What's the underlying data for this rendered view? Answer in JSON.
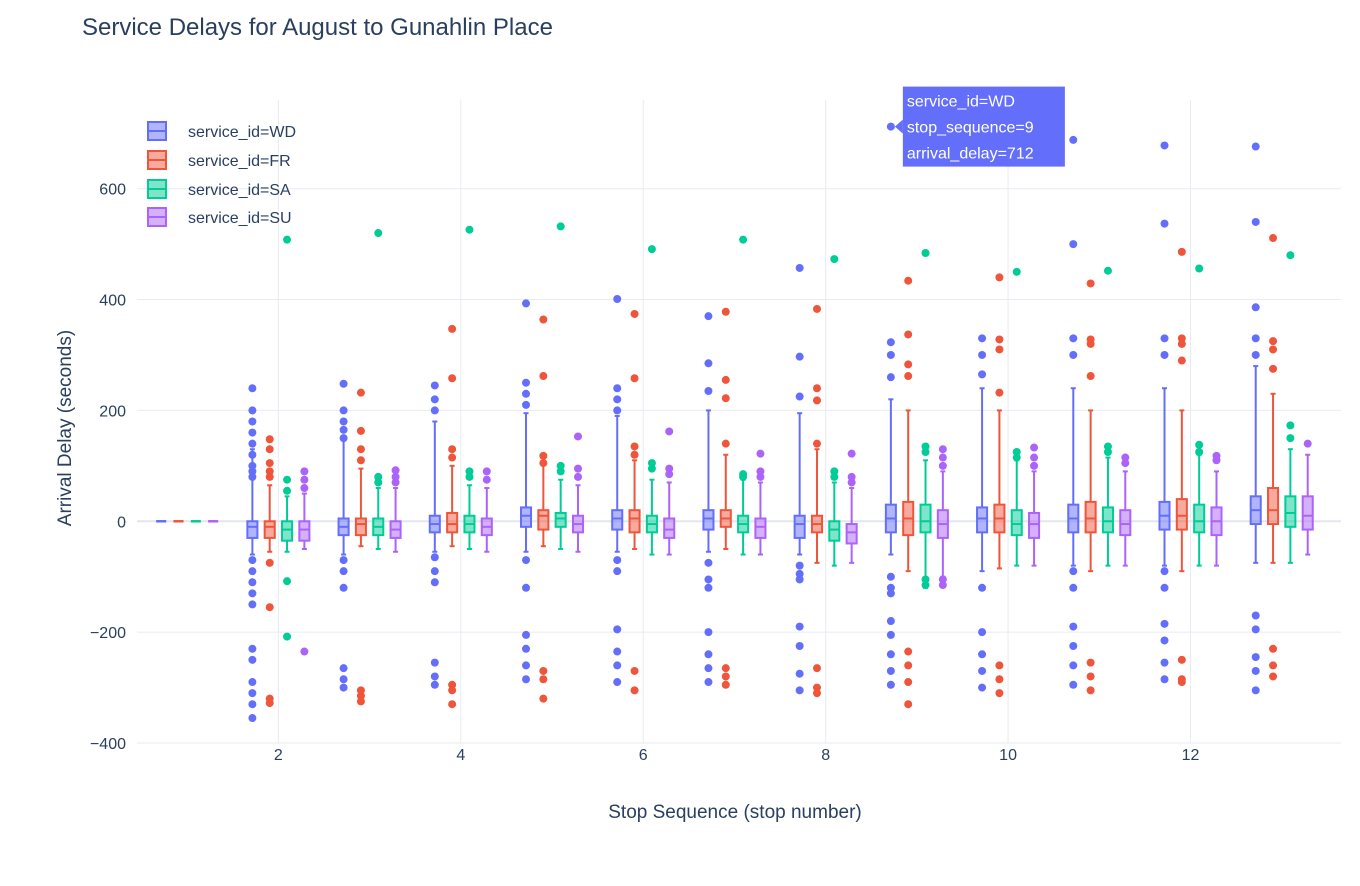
{
  "colors": {
    "WD": "#636efa",
    "FR": "#ef553b",
    "SA": "#00cc96",
    "SU": "#ab63fa",
    "grid": "#e8ebf1",
    "text": "#2a3f5f"
  },
  "chart_data": {
    "type": "box",
    "title": "Service Delays for August to Gunahlin Place",
    "xlabel": "Stop Sequence (stop number)",
    "ylabel": "Arrival Delay (seconds)",
    "xlim": [
      0.45,
      13.65
    ],
    "ylim": [
      -400,
      760
    ],
    "x_ticks": [
      2,
      4,
      6,
      8,
      10,
      12
    ],
    "x_tick_labels": [
      "2",
      "4",
      "6",
      "8",
      "10",
      "12"
    ],
    "y_ticks": [
      -400,
      -200,
      0,
      200,
      400,
      600
    ],
    "y_tick_labels": [
      "−400",
      "−200",
      "0",
      "200",
      "400",
      "600"
    ],
    "legend": {
      "position": "top-left",
      "entries": [
        "service_id=WD",
        "service_id=FR",
        "service_id=SA",
        "service_id=SU"
      ]
    },
    "series": [
      {
        "name": "service_id=WD",
        "key": "WD",
        "boxes": [
          {
            "x": 1,
            "q1": 0,
            "median": 0,
            "q3": 0,
            "lo": 0,
            "hi": 0,
            "outliers": []
          },
          {
            "x": 2,
            "q1": -30,
            "median": -10,
            "q3": 0,
            "lo": -60,
            "hi": 130,
            "outliers": [
              240,
              200,
              180,
              160,
              140,
              120,
              100,
              90,
              80,
              -70,
              -90,
              -110,
              -130,
              -150,
              -230,
              -250,
              -290,
              -310,
              -330,
              -355
            ]
          },
          {
            "x": 3,
            "q1": -25,
            "median": -10,
            "q3": 5,
            "lo": -60,
            "hi": 150,
            "outliers": [
              248,
              200,
              180,
              165,
              150,
              -70,
              -90,
              -120,
              -265,
              -285,
              -300
            ]
          },
          {
            "x": 4,
            "q1": -20,
            "median": -5,
            "q3": 10,
            "lo": -55,
            "hi": 180,
            "outliers": [
              245,
              220,
              200,
              -65,
              -90,
              -110,
              -255,
              -280,
              -295
            ]
          },
          {
            "x": 5,
            "q1": -10,
            "median": 10,
            "q3": 25,
            "lo": -55,
            "hi": 195,
            "outliers": [
              393,
              250,
              230,
              210,
              -70,
              -120,
              -205,
              -230,
              -260,
              -285
            ]
          },
          {
            "x": 6,
            "q1": -15,
            "median": 5,
            "q3": 20,
            "lo": -55,
            "hi": 190,
            "outliers": [
              401,
              240,
              220,
              200,
              -70,
              -90,
              -195,
              -235,
              -260,
              -290
            ]
          },
          {
            "x": 7,
            "q1": -15,
            "median": 5,
            "q3": 20,
            "lo": -55,
            "hi": 200,
            "outliers": [
              370,
              285,
              235,
              -75,
              -105,
              -120,
              -200,
              -240,
              -265,
              -290
            ]
          },
          {
            "x": 8,
            "q1": -30,
            "median": -5,
            "q3": 10,
            "lo": -60,
            "hi": 195,
            "outliers": [
              457,
              297,
              225,
              -80,
              -95,
              -105,
              -190,
              -225,
              -275,
              -305
            ]
          },
          {
            "x": 9,
            "q1": -20,
            "median": 5,
            "q3": 30,
            "lo": -60,
            "hi": 220,
            "outliers": [
              712,
              323,
              300,
              260,
              -100,
              -120,
              -130,
              -180,
              -205,
              -240,
              -270,
              -295
            ]
          },
          {
            "x": 10,
            "q1": -20,
            "median": 5,
            "q3": 25,
            "lo": -90,
            "hi": 240,
            "outliers": [
              330,
              300,
              265,
              -120,
              -200,
              -240,
              -270,
              -300
            ]
          },
          {
            "x": 11,
            "q1": -20,
            "median": 5,
            "q3": 30,
            "lo": -80,
            "hi": 240,
            "outliers": [
              688,
              500,
              330,
              300,
              -90,
              -120,
              -190,
              -225,
              -260,
              -295
            ]
          },
          {
            "x": 12,
            "q1": -15,
            "median": 10,
            "q3": 35,
            "lo": -80,
            "hi": 240,
            "outliers": [
              678,
              537,
              330,
              300,
              -90,
              -120,
              -185,
              -215,
              -255,
              -285
            ]
          },
          {
            "x": 13,
            "q1": -5,
            "median": 20,
            "q3": 45,
            "lo": -75,
            "hi": 280,
            "outliers": [
              676,
              540,
              386,
              330,
              300,
              -170,
              -195,
              -245,
              -270,
              -305
            ]
          }
        ]
      },
      {
        "name": "service_id=FR",
        "key": "FR",
        "boxes": [
          {
            "x": 1,
            "q1": 0,
            "median": 0,
            "q3": 0,
            "lo": 0,
            "hi": 0,
            "outliers": []
          },
          {
            "x": 2,
            "q1": -30,
            "median": -10,
            "q3": 0,
            "lo": -55,
            "hi": 65,
            "outliers": [
              148,
              130,
              105,
              90,
              80,
              -75,
              -155,
              -320,
              -328
            ]
          },
          {
            "x": 3,
            "q1": -25,
            "median": -5,
            "q3": 5,
            "lo": -45,
            "hi": 95,
            "outliers": [
              232,
              163,
              130,
              110,
              -305,
              -315,
              -325
            ]
          },
          {
            "x": 4,
            "q1": -20,
            "median": -5,
            "q3": 15,
            "lo": -45,
            "hi": 100,
            "outliers": [
              347,
              258,
              130,
              115,
              -295,
              -305,
              -330
            ]
          },
          {
            "x": 5,
            "q1": -15,
            "median": 10,
            "q3": 20,
            "lo": -45,
            "hi": 105,
            "outliers": [
              364,
              262,
              118,
              105,
              -270,
              -285,
              -320
            ]
          },
          {
            "x": 6,
            "q1": -20,
            "median": 5,
            "q3": 20,
            "lo": -50,
            "hi": 110,
            "outliers": [
              374,
              258,
              135,
              120,
              -270,
              -305
            ]
          },
          {
            "x": 7,
            "q1": -10,
            "median": 5,
            "q3": 20,
            "lo": -50,
            "hi": 120,
            "outliers": [
              378,
              255,
              222,
              140,
              -265,
              -280,
              -295
            ]
          },
          {
            "x": 8,
            "q1": -20,
            "median": -5,
            "q3": 10,
            "lo": -75,
            "hi": 130,
            "outliers": [
              383,
              240,
              218,
              140,
              -265,
              -300,
              -310
            ]
          },
          {
            "x": 9,
            "q1": -25,
            "median": 5,
            "q3": 35,
            "lo": -90,
            "hi": 200,
            "outliers": [
              434,
              337,
              283,
              262,
              -235,
              -260,
              -290,
              -330
            ]
          },
          {
            "x": 10,
            "q1": -20,
            "median": 5,
            "q3": 30,
            "lo": -85,
            "hi": 200,
            "outliers": [
              440,
              328,
              310,
              232,
              -260,
              -285,
              -310
            ]
          },
          {
            "x": 11,
            "q1": -20,
            "median": 5,
            "q3": 35,
            "lo": -90,
            "hi": 200,
            "outliers": [
              429,
              328,
              320,
              262,
              -255,
              -280,
              -305
            ]
          },
          {
            "x": 12,
            "q1": -15,
            "median": 10,
            "q3": 40,
            "lo": -90,
            "hi": 200,
            "outliers": [
              486,
              330,
              320,
              290,
              -250,
              -285,
              -290
            ]
          },
          {
            "x": 13,
            "q1": -5,
            "median": 20,
            "q3": 60,
            "lo": -75,
            "hi": 230,
            "outliers": [
              511,
              325,
              310,
              275,
              -230,
              -260,
              -280
            ]
          }
        ]
      },
      {
        "name": "service_id=SA",
        "key": "SA",
        "boxes": [
          {
            "x": 1,
            "q1": 0,
            "median": 0,
            "q3": 0,
            "lo": 0,
            "hi": 0,
            "outliers": []
          },
          {
            "x": 2,
            "q1": -35,
            "median": -15,
            "q3": 0,
            "lo": -55,
            "hi": 45,
            "outliers": [
              508,
              75,
              55,
              -108,
              -208
            ]
          },
          {
            "x": 3,
            "q1": -25,
            "median": -10,
            "q3": 5,
            "lo": -50,
            "hi": 60,
            "outliers": [
              520,
              80,
              70
            ]
          },
          {
            "x": 4,
            "q1": -20,
            "median": -5,
            "q3": 10,
            "lo": -50,
            "hi": 65,
            "outliers": [
              526,
              90,
              80
            ]
          },
          {
            "x": 5,
            "q1": -10,
            "median": 5,
            "q3": 15,
            "lo": -50,
            "hi": 75,
            "outliers": [
              532,
              100,
              90
            ]
          },
          {
            "x": 6,
            "q1": -20,
            "median": -5,
            "q3": 10,
            "lo": -60,
            "hi": 75,
            "outliers": [
              491,
              105,
              95
            ]
          },
          {
            "x": 7,
            "q1": -20,
            "median": -5,
            "q3": 10,
            "lo": -60,
            "hi": 75,
            "outliers": [
              508,
              85,
              80
            ]
          },
          {
            "x": 8,
            "q1": -35,
            "median": -15,
            "q3": 0,
            "lo": -80,
            "hi": 70,
            "outliers": [
              473,
              90,
              80
            ]
          },
          {
            "x": 9,
            "q1": -20,
            "median": 0,
            "q3": 30,
            "lo": -120,
            "hi": 110,
            "outliers": [
              484,
              135,
              125,
              -105,
              -115
            ]
          },
          {
            "x": 10,
            "q1": -25,
            "median": -5,
            "q3": 20,
            "lo": -80,
            "hi": 110,
            "outliers": [
              450,
              125,
              115
            ]
          },
          {
            "x": 11,
            "q1": -20,
            "median": 0,
            "q3": 25,
            "lo": -80,
            "hi": 115,
            "outliers": [
              452,
              135,
              125
            ]
          },
          {
            "x": 12,
            "q1": -20,
            "median": 0,
            "q3": 30,
            "lo": -80,
            "hi": 120,
            "outliers": [
              456,
              138,
              125
            ]
          },
          {
            "x": 13,
            "q1": -10,
            "median": 15,
            "q3": 45,
            "lo": -75,
            "hi": 130,
            "outliers": [
              480,
              173,
              150
            ]
          }
        ]
      },
      {
        "name": "service_id=SU",
        "key": "SU",
        "boxes": [
          {
            "x": 1,
            "q1": 0,
            "median": 0,
            "q3": 0,
            "lo": 0,
            "hi": 0,
            "outliers": []
          },
          {
            "x": 2,
            "q1": -35,
            "median": -15,
            "q3": 0,
            "lo": -50,
            "hi": 50,
            "outliers": [
              90,
              75,
              60,
              -235
            ]
          },
          {
            "x": 3,
            "q1": -30,
            "median": -15,
            "q3": 0,
            "lo": -55,
            "hi": 60,
            "outliers": [
              92,
              80,
              70
            ]
          },
          {
            "x": 4,
            "q1": -25,
            "median": -10,
            "q3": 5,
            "lo": -55,
            "hi": 60,
            "outliers": [
              90,
              75
            ]
          },
          {
            "x": 5,
            "q1": -20,
            "median": -5,
            "q3": 10,
            "lo": -55,
            "hi": 65,
            "outliers": [
              153,
              95,
              80
            ]
          },
          {
            "x": 6,
            "q1": -30,
            "median": -15,
            "q3": 5,
            "lo": -60,
            "hi": 70,
            "outliers": [
              162,
              95,
              85
            ]
          },
          {
            "x": 7,
            "q1": -30,
            "median": -10,
            "q3": 5,
            "lo": -60,
            "hi": 70,
            "outliers": [
              122,
              90,
              80
            ]
          },
          {
            "x": 8,
            "q1": -40,
            "median": -20,
            "q3": -5,
            "lo": -75,
            "hi": 60,
            "outliers": [
              122,
              80,
              70
            ]
          },
          {
            "x": 9,
            "q1": -30,
            "median": -5,
            "q3": 20,
            "lo": -100,
            "hi": 90,
            "outliers": [
              130,
              115,
              100,
              -105,
              -115
            ]
          },
          {
            "x": 10,
            "q1": -30,
            "median": -5,
            "q3": 15,
            "lo": -80,
            "hi": 90,
            "outliers": [
              133,
              115,
              100
            ]
          },
          {
            "x": 11,
            "q1": -25,
            "median": -5,
            "q3": 20,
            "lo": -80,
            "hi": 90,
            "outliers": [
              115,
              105
            ]
          },
          {
            "x": 12,
            "q1": -25,
            "median": 0,
            "q3": 25,
            "lo": -80,
            "hi": 90,
            "outliers": [
              118,
              110
            ]
          },
          {
            "x": 13,
            "q1": -15,
            "median": 10,
            "q3": 45,
            "lo": -60,
            "hi": 120,
            "outliers": [
              140
            ]
          }
        ]
      }
    ],
    "hover": {
      "lines": [
        "service_id=WD",
        "stop_sequence=9",
        "arrival_delay=712"
      ],
      "series_key": "WD",
      "x": 9,
      "offset_index": 0,
      "y": 712
    }
  }
}
